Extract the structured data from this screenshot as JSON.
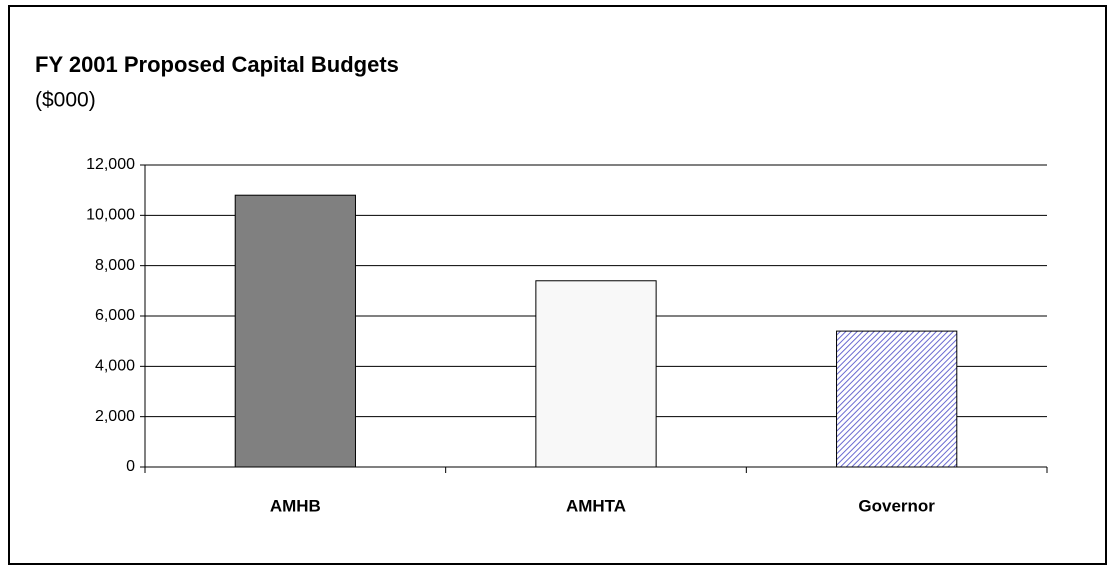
{
  "chart_data": {
    "type": "bar",
    "title": "FY 2001 Proposed Capital Budgets",
    "subtitle": "($000)",
    "categories": [
      "AMHB",
      "AMHTA",
      "Governor"
    ],
    "values": [
      10800,
      7400,
      5400
    ],
    "colors": [
      "#808080",
      "#f8f8f8",
      "#b8b8e8"
    ],
    "hatch": [
      false,
      false,
      true
    ],
    "ylim": [
      0,
      12000
    ],
    "yticks": [
      0,
      {
        "value": 2000,
        "label": "2,000"
      },
      {
        "value": 4000,
        "label": "4,000"
      },
      {
        "value": 6000,
        "label": "6,000"
      },
      {
        "value": 8000,
        "label": "8,000"
      },
      {
        "value": 10000,
        "label": "10,000"
      },
      {
        "value": 12000,
        "label": "12,000"
      }
    ],
    "grid": true
  }
}
